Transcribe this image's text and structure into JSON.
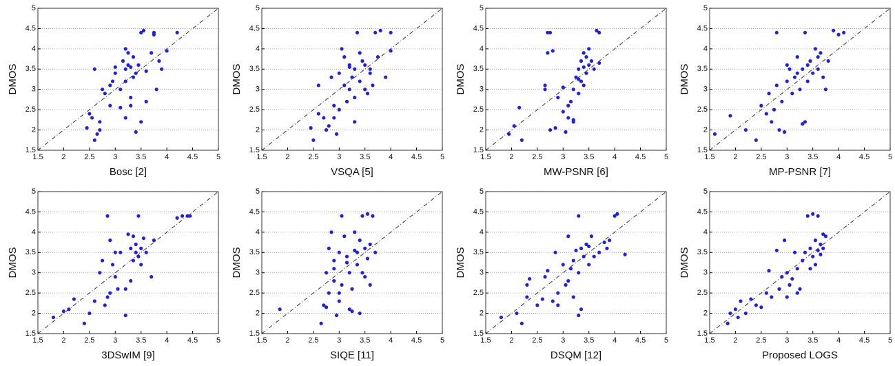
{
  "chart_data": [
    {
      "type": "scatter",
      "xlabel": "Bosc [2]",
      "ylabel": "DMOS",
      "color": "#1f1fe6",
      "grid": "y",
      "diagonal": true,
      "xlim": [
        1.5,
        5
      ],
      "ylim": [
        1.5,
        5
      ],
      "xticks": [
        1.5,
        2,
        2.5,
        3,
        3.5,
        4,
        4.5,
        5
      ],
      "yticks": [
        1.5,
        2,
        2.5,
        3,
        3.5,
        4,
        4.5,
        5
      ],
      "x": [
        2.5,
        2.6,
        2.45,
        2.55,
        2.7,
        2.8,
        2.9,
        2.65,
        2.6,
        2.7,
        2.75,
        2.9,
        3.0,
        3.1,
        3.15,
        3.2,
        3.2,
        3.25,
        3.3,
        3.3,
        3.35,
        3.2,
        3.25,
        3.4,
        3.45,
        3.5,
        3.5,
        3.55,
        3.6,
        3.6,
        3.7,
        3.75,
        3.75,
        3.8,
        3.85,
        3.9,
        4.0,
        4.2,
        3.3,
        3.4,
        3.1,
        3.2,
        2.95,
        3.35,
        3.0
      ],
      "values": [
        2.4,
        3.5,
        2.05,
        2.3,
        2.2,
        2.9,
        3.1,
        1.9,
        1.75,
        2.0,
        3.0,
        2.6,
        3.4,
        3.0,
        3.7,
        3.5,
        4.0,
        3.6,
        3.55,
        2.8,
        3.3,
        3.2,
        3.9,
        1.95,
        3.6,
        2.2,
        4.4,
        4.45,
        3.45,
        2.7,
        3.9,
        4.35,
        4.4,
        3.0,
        3.7,
        3.5,
        3.95,
        4.4,
        2.6,
        3.4,
        2.55,
        2.3,
        3.2,
        3.8,
        3.55
      ]
    },
    {
      "type": "scatter",
      "xlabel": "VSQA [5]",
      "ylabel": "DMOS",
      "color": "#1f1fe6",
      "grid": "y",
      "diagonal": true,
      "xlim": [
        1.5,
        5
      ],
      "ylim": [
        1.5,
        5
      ],
      "xticks": [
        1.5,
        2,
        2.5,
        3,
        3.5,
        4,
        4.5,
        5
      ],
      "yticks": [
        1.5,
        2,
        2.5,
        3,
        3.5,
        4,
        4.5,
        5
      ],
      "x": [
        2.45,
        2.5,
        2.6,
        2.7,
        2.75,
        2.8,
        2.85,
        2.9,
        2.95,
        3.0,
        3.0,
        3.05,
        3.1,
        3.15,
        3.2,
        3.2,
        3.25,
        3.3,
        3.3,
        3.35,
        3.4,
        3.45,
        3.5,
        3.5,
        3.55,
        3.6,
        3.65,
        3.7,
        3.75,
        3.8,
        3.9,
        4.0,
        4.0,
        3.3,
        3.1,
        2.9,
        3.4,
        3.6,
        2.6,
        3.2
      ],
      "values": [
        2.05,
        1.75,
        2.4,
        2.3,
        2.0,
        2.1,
        3.3,
        2.6,
        1.9,
        2.5,
        3.4,
        4.0,
        3.8,
        2.7,
        3.6,
        3.0,
        3.3,
        3.5,
        2.8,
        4.4,
        3.2,
        3.7,
        3.0,
        3.6,
        2.9,
        3.5,
        3.1,
        4.4,
        3.8,
        4.45,
        3.3,
        4.4,
        3.95,
        2.2,
        3.1,
        2.3,
        3.9,
        3.4,
        3.1,
        3.55
      ]
    },
    {
      "type": "scatter",
      "xlabel": "MW-PSNR [6]",
      "ylabel": "DMOS",
      "color": "#1f1fe6",
      "grid": "y",
      "diagonal": true,
      "xlim": [
        1.5,
        5
      ],
      "ylim": [
        1.5,
        5
      ],
      "xticks": [
        1.5,
        2,
        2.5,
        3,
        3.5,
        4,
        4.5,
        5
      ],
      "yticks": [
        1.5,
        2,
        2.5,
        3,
        3.5,
        4,
        4.5,
        5
      ],
      "x": [
        1.95,
        2.05,
        2.15,
        2.2,
        2.65,
        2.7,
        2.75,
        2.8,
        2.7,
        2.65,
        2.85,
        2.9,
        3.0,
        3.05,
        3.1,
        3.1,
        3.15,
        3.2,
        3.2,
        3.25,
        3.3,
        3.3,
        3.35,
        3.35,
        3.4,
        3.4,
        3.45,
        3.45,
        3.5,
        3.5,
        3.55,
        3.6,
        3.65,
        3.7,
        3.7,
        3.2,
        3.0,
        2.75,
        3.3,
        3.4
      ],
      "values": [
        1.9,
        2.1,
        2.55,
        1.75,
        3.1,
        4.4,
        4.4,
        3.95,
        3.9,
        3.0,
        2.05,
        2.8,
        3.05,
        1.95,
        2.3,
        2.6,
        2.7,
        2.2,
        3.0,
        3.3,
        3.5,
        2.9,
        3.7,
        3.2,
        3.55,
        3.9,
        3.4,
        3.8,
        3.6,
        4.0,
        3.7,
        3.5,
        4.45,
        4.4,
        3.65,
        2.25,
        2.45,
        2.0,
        3.25,
        3.1
      ]
    },
    {
      "type": "scatter",
      "xlabel": "MP-PSNR [7]",
      "ylabel": "DMOS",
      "color": "#1f1fe6",
      "grid": "y",
      "diagonal": true,
      "xlim": [
        1.5,
        5
      ],
      "ylim": [
        1.5,
        5
      ],
      "xticks": [
        1.5,
        2,
        2.5,
        3,
        3.5,
        4,
        4.5,
        5
      ],
      "yticks": [
        1.5,
        2,
        2.5,
        3,
        3.5,
        4,
        4.5,
        5
      ],
      "x": [
        1.6,
        1.9,
        2.2,
        2.4,
        2.5,
        2.6,
        2.65,
        2.7,
        2.8,
        2.85,
        2.9,
        2.95,
        3.0,
        3.05,
        3.1,
        3.15,
        3.2,
        3.2,
        3.3,
        3.3,
        3.35,
        3.4,
        3.4,
        3.45,
        3.5,
        3.55,
        3.6,
        3.65,
        3.7,
        3.75,
        3.8,
        3.9,
        4.0,
        4.1,
        3.35,
        2.8,
        3.0,
        3.25,
        2.75,
        3.6
      ],
      "values": [
        1.9,
        2.35,
        2.0,
        1.75,
        2.6,
        2.4,
        2.9,
        2.2,
        3.1,
        2.0,
        2.7,
        1.95,
        3.2,
        3.5,
        2.9,
        3.3,
        3.8,
        3.4,
        2.15,
        3.5,
        4.4,
        3.6,
        3.2,
        3.7,
        3.4,
        4.0,
        3.5,
        3.9,
        3.3,
        3.0,
        3.7,
        4.45,
        4.35,
        4.4,
        2.2,
        4.4,
        3.6,
        3.0,
        2.5,
        3.8
      ]
    },
    {
      "type": "scatter",
      "xlabel": "3DSwIM [9]",
      "ylabel": "DMOS",
      "color": "#1f1fe6",
      "grid": "y",
      "diagonal": true,
      "xlim": [
        1.5,
        5
      ],
      "ylim": [
        1.5,
        5
      ],
      "xticks": [
        1.5,
        2,
        2.5,
        3,
        3.5,
        4,
        4.5,
        5
      ],
      "yticks": [
        1.5,
        2,
        2.5,
        3,
        3.5,
        4,
        4.5,
        5
      ],
      "x": [
        1.8,
        2.0,
        2.1,
        2.2,
        2.4,
        2.5,
        2.6,
        2.7,
        2.75,
        2.8,
        2.85,
        2.9,
        2.9,
        2.95,
        3.0,
        3.05,
        3.1,
        3.2,
        3.2,
        3.3,
        3.3,
        3.35,
        3.35,
        3.4,
        3.4,
        3.45,
        3.45,
        3.5,
        3.5,
        3.55,
        3.6,
        3.7,
        3.75,
        4.2,
        4.3,
        4.4,
        4.45,
        2.85,
        3.0,
        3.25
      ],
      "values": [
        1.9,
        2.05,
        2.1,
        2.35,
        1.75,
        2.0,
        2.3,
        3.0,
        3.3,
        2.2,
        4.4,
        2.5,
        3.8,
        3.2,
        3.5,
        2.6,
        3.5,
        1.95,
        2.6,
        3.6,
        2.8,
        3.9,
        3.3,
        3.7,
        3.5,
        4.4,
        3.4,
        3.6,
        3.2,
        3.85,
        3.5,
        2.9,
        3.8,
        4.35,
        4.4,
        4.4,
        4.4,
        2.4,
        2.9,
        3.95
      ]
    },
    {
      "type": "scatter",
      "xlabel": "SIQE [11]",
      "ylabel": "DMOS",
      "color": "#1f1fe6",
      "grid": "y",
      "diagonal": true,
      "xlim": [
        1.5,
        5
      ],
      "ylim": [
        1.5,
        5
      ],
      "xticks": [
        1.5,
        2,
        2.5,
        3,
        3.5,
        4,
        4.5,
        5
      ],
      "yticks": [
        1.5,
        2,
        2.5,
        3,
        3.5,
        4,
        4.5,
        5
      ],
      "x": [
        1.85,
        2.65,
        2.7,
        2.75,
        2.8,
        2.8,
        2.85,
        2.9,
        2.9,
        2.95,
        3.0,
        3.0,
        3.05,
        3.05,
        3.1,
        3.15,
        3.2,
        3.2,
        3.25,
        3.3,
        3.3,
        3.35,
        3.35,
        3.4,
        3.4,
        3.45,
        3.5,
        3.5,
        3.55,
        3.55,
        3.6,
        3.6,
        3.65,
        3.7,
        3.0,
        2.9,
        3.25,
        3.45,
        2.75,
        3.15
      ],
      "values": [
        2.1,
        1.75,
        2.2,
        3.0,
        2.5,
        3.6,
        4.0,
        2.8,
        3.3,
        1.95,
        3.5,
        2.3,
        4.4,
        2.7,
        3.9,
        3.4,
        2.1,
        3.0,
        2.6,
        3.55,
        4.0,
        3.2,
        3.5,
        2.0,
        3.8,
        4.4,
        2.9,
        3.6,
        3.35,
        4.45,
        3.7,
        2.7,
        4.4,
        3.5,
        2.5,
        3.1,
        2.05,
        3.0,
        2.15,
        3.25
      ]
    },
    {
      "type": "scatter",
      "xlabel": "DSQM [12]",
      "ylabel": "DMOS",
      "color": "#1f1fe6",
      "grid": "y",
      "diagonal": true,
      "xlim": [
        1.5,
        5
      ],
      "ylim": [
        1.5,
        5
      ],
      "xticks": [
        1.5,
        2,
        2.5,
        3,
        3.5,
        4,
        4.5,
        5
      ],
      "yticks": [
        1.5,
        2,
        2.5,
        3,
        3.5,
        4,
        4.5,
        5
      ],
      "x": [
        1.8,
        2.1,
        2.2,
        2.3,
        2.3,
        2.35,
        2.5,
        2.6,
        2.65,
        2.7,
        2.8,
        2.85,
        2.9,
        3.0,
        3.05,
        3.1,
        3.15,
        3.2,
        3.2,
        3.25,
        3.3,
        3.3,
        3.35,
        3.35,
        3.4,
        3.45,
        3.5,
        3.5,
        3.55,
        3.6,
        3.7,
        3.8,
        3.85,
        3.9,
        4.0,
        4.05,
        4.2,
        3.3,
        3.1,
        2.9
      ],
      "values": [
        1.9,
        2.0,
        1.75,
        2.7,
        2.4,
        2.85,
        2.2,
        2.35,
        2.9,
        3.05,
        2.3,
        3.5,
        2.5,
        3.2,
        2.7,
        3.9,
        3.1,
        3.3,
        2.4,
        3.55,
        4.4,
        3.0,
        3.6,
        2.1,
        3.4,
        3.7,
        3.2,
        3.65,
        3.9,
        3.4,
        3.5,
        3.75,
        3.6,
        3.8,
        4.4,
        4.45,
        3.45,
        1.95,
        2.8,
        2.2
      ]
    },
    {
      "type": "scatter",
      "xlabel": "Proposed LOGS",
      "ylabel": "DMOS",
      "color": "#1f1fe6",
      "grid": "y",
      "diagonal": true,
      "xlim": [
        1.5,
        5
      ],
      "ylim": [
        1.5,
        5
      ],
      "xticks": [
        1.5,
        2,
        2.5,
        3,
        3.5,
        4,
        4.5,
        5
      ],
      "yticks": [
        1.5,
        2,
        2.5,
        3,
        3.5,
        4,
        4.5,
        5
      ],
      "x": [
        1.85,
        1.9,
        2.0,
        2.05,
        2.1,
        2.2,
        2.3,
        2.4,
        2.5,
        2.6,
        2.65,
        2.7,
        2.8,
        2.85,
        2.9,
        2.95,
        3.0,
        3.05,
        3.1,
        3.15,
        3.2,
        3.25,
        3.3,
        3.35,
        3.4,
        3.45,
        3.5,
        3.5,
        3.55,
        3.55,
        3.6,
        3.6,
        3.65,
        3.65,
        3.7,
        3.7,
        3.75,
        3.2,
        3.0,
        3.45
      ],
      "values": [
        1.75,
        2.0,
        2.1,
        1.9,
        2.3,
        2.0,
        2.35,
        2.2,
        2.15,
        2.5,
        3.05,
        2.4,
        3.55,
        2.6,
        2.9,
        3.8,
        3.0,
        2.7,
        2.85,
        3.5,
        3.1,
        2.6,
        3.3,
        3.5,
        4.4,
        3.6,
        3.4,
        4.45,
        3.2,
        3.8,
        3.55,
        4.4,
        3.7,
        3.45,
        3.95,
        3.6,
        3.9,
        2.5,
        2.4,
        3.1
      ]
    }
  ]
}
